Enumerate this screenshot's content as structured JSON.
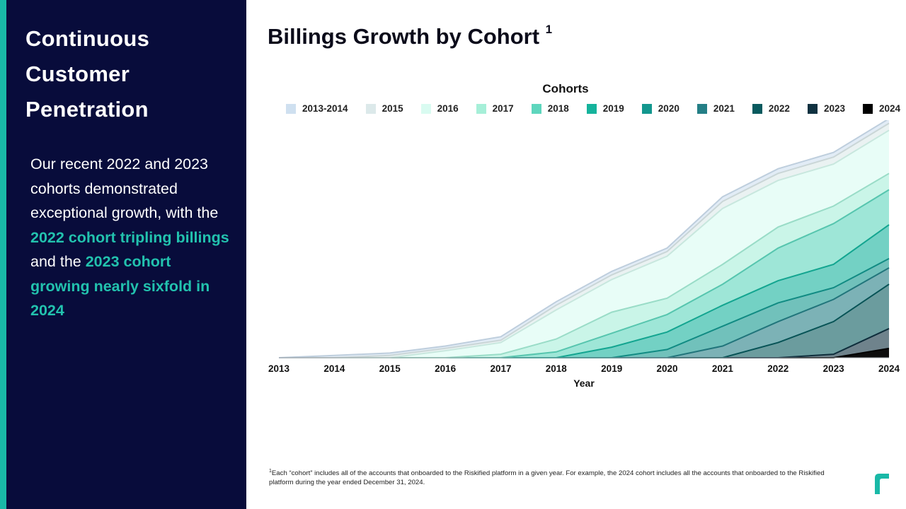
{
  "sidebar": {
    "heading": "Continuous Customer Penetration",
    "text_1": " Our recent 2022 and 2023 cohorts demonstrated exceptional growth, with the ",
    "highlight_1": "2022 cohort tripling billings",
    "text_2": " and the ",
    "highlight_2": "2023 cohort growing nearly sixfold in 2024"
  },
  "title": {
    "text": "Billings Growth by Cohort ",
    "sup": "1"
  },
  "footnote": {
    "sup": "1",
    "text": "Each “cohort” includes all of the accounts that onboarded to the Riskified platform in a given year. For example, the 2024 cohort includes all the accounts that onboarded to the Riskified platform during the year ended December 31, 2024."
  },
  "colors": {
    "sidebar_bg": "#080c3b",
    "accent": "#19b9a7",
    "highlight": "#22c2ae"
  },
  "chart_data": {
    "type": "area",
    "stacked": true,
    "title": "",
    "legend_title": "Cohorts",
    "legend_position": "top",
    "xlabel": "Year",
    "ylabel": "",
    "x": [
      "2013",
      "2014",
      "2015",
      "2016",
      "2017",
      "2018",
      "2019",
      "2020",
      "2021",
      "2022",
      "2023",
      "2024"
    ],
    "ylim": [
      0,
      100
    ],
    "series": [
      {
        "name": "2024",
        "color": "#000000",
        "values": [
          0,
          0,
          0,
          0,
          0,
          0,
          0,
          0,
          0,
          0,
          0,
          4
        ]
      },
      {
        "name": "2023",
        "color": "#0f3140",
        "values": [
          0,
          0,
          0,
          0,
          0,
          0,
          0,
          0,
          0,
          0,
          1.5,
          8.5
        ]
      },
      {
        "name": "2022",
        "color": "#085a5e",
        "values": [
          0,
          0,
          0,
          0,
          0,
          0,
          0,
          0,
          0,
          6.5,
          14,
          19
        ]
      },
      {
        "name": "2021",
        "color": "#247f86",
        "values": [
          0,
          0,
          0,
          0,
          0,
          0,
          0,
          0,
          5,
          9,
          9.5,
          7
        ]
      },
      {
        "name": "2020",
        "color": "#13978e",
        "values": [
          0,
          0,
          0,
          0,
          0,
          0,
          0,
          3.5,
          8.5,
          8,
          5,
          4
        ]
      },
      {
        "name": "2019",
        "color": "#15b39c",
        "values": [
          0,
          0,
          0,
          0,
          0,
          0,
          4.5,
          7.5,
          9,
          9.5,
          10,
          14.5
        ]
      },
      {
        "name": "2018",
        "color": "#5ed6bd",
        "values": [
          0,
          0,
          0,
          0,
          0,
          2.5,
          6,
          7.5,
          9,
          14,
          17.5,
          15
        ]
      },
      {
        "name": "2017",
        "color": "#a6efd8",
        "values": [
          0,
          0,
          0,
          0,
          1.5,
          5.5,
          9,
          7,
          8.5,
          9,
          7.5,
          7
        ]
      },
      {
        "name": "2016",
        "color": "#d9fbf1",
        "values": [
          0,
          0,
          0,
          3,
          5,
          12.5,
          14,
          18,
          24,
          20,
          18,
          18.5
        ]
      },
      {
        "name": "2015",
        "color": "#dce9ea",
        "values": [
          0,
          0,
          1,
          1,
          1,
          2,
          2,
          2,
          3,
          3,
          3,
          3
        ]
      },
      {
        "name": "2013-2014",
        "color": "#cfe0f0",
        "values": [
          0,
          1,
          1,
          1,
          1.5,
          1.5,
          1.5,
          1.5,
          2,
          2,
          2,
          2
        ]
      }
    ],
    "legend_order": [
      "2013-2014",
      "2015",
      "2016",
      "2017",
      "2018",
      "2019",
      "2020",
      "2021",
      "2022",
      "2023",
      "2024"
    ]
  }
}
